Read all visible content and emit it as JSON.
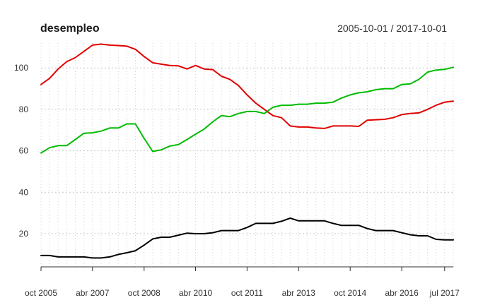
{
  "chart_data": {
    "type": "line",
    "title": "desempleo",
    "date_range": "2005-10-01 / 2017-10-01",
    "xlabel": "",
    "ylabel": "",
    "x_range": [
      "2005-10-01",
      "2017-10-01"
    ],
    "ylim": [
      4,
      112
    ],
    "y_ticks": [
      20,
      40,
      60,
      80,
      100
    ],
    "x_ticks": [
      {
        "date": "2005-10-01",
        "label": "oct 2005"
      },
      {
        "date": "2007-04-01",
        "label": "abr 2007"
      },
      {
        "date": "2008-10-01",
        "label": "oct 2008"
      },
      {
        "date": "2010-04-01",
        "label": "abr 2010"
      },
      {
        "date": "2011-10-01",
        "label": "oct 2011"
      },
      {
        "date": "2013-04-01",
        "label": "abr 2013"
      },
      {
        "date": "2014-10-01",
        "label": "oct 2014"
      },
      {
        "date": "2016-04-01",
        "label": "abr 2016"
      },
      {
        "date": "2017-07-01",
        "label": "jul 2017"
      }
    ],
    "grid": true,
    "legend": "none",
    "series": [
      {
        "color": "#e00000",
        "points": [
          [
            "2005-10-01",
            92
          ],
          [
            "2006-01-01",
            95
          ],
          [
            "2006-04-01",
            99.5
          ],
          [
            "2006-07-01",
            103
          ],
          [
            "2006-10-01",
            105
          ],
          [
            "2007-01-01",
            108
          ],
          [
            "2007-04-01",
            111
          ],
          [
            "2007-07-01",
            111.5
          ],
          [
            "2007-10-01",
            111
          ],
          [
            "2008-01-01",
            110.8
          ],
          [
            "2008-04-01",
            110.5
          ],
          [
            "2008-07-01",
            109
          ],
          [
            "2008-10-01",
            105.5
          ],
          [
            "2009-01-01",
            102.5
          ],
          [
            "2009-04-01",
            101.8
          ],
          [
            "2009-07-01",
            101.2
          ],
          [
            "2009-10-01",
            101
          ],
          [
            "2010-01-01",
            99.5
          ],
          [
            "2010-04-01",
            101.2
          ],
          [
            "2010-07-01",
            99.5
          ],
          [
            "2010-10-01",
            99.2
          ],
          [
            "2011-01-01",
            96
          ],
          [
            "2011-04-01",
            94.5
          ],
          [
            "2011-07-01",
            91.5
          ],
          [
            "2011-10-01",
            87
          ],
          [
            "2012-01-01",
            83
          ],
          [
            "2012-04-01",
            80
          ],
          [
            "2012-07-01",
            77
          ],
          [
            "2012-10-01",
            76
          ],
          [
            "2013-01-01",
            72
          ],
          [
            "2013-04-01",
            71.5
          ],
          [
            "2013-07-01",
            71.5
          ],
          [
            "2013-10-01",
            71
          ],
          [
            "2014-01-01",
            70.8
          ],
          [
            "2014-04-01",
            72
          ],
          [
            "2014-07-01",
            72
          ],
          [
            "2014-10-01",
            72
          ],
          [
            "2015-01-01",
            71.8
          ],
          [
            "2015-04-01",
            74.8
          ],
          [
            "2015-07-01",
            75
          ],
          [
            "2015-10-01",
            75.2
          ],
          [
            "2016-01-01",
            76
          ],
          [
            "2016-04-01",
            77.5
          ],
          [
            "2016-07-01",
            78
          ],
          [
            "2016-10-01",
            78.3
          ],
          [
            "2017-01-01",
            80
          ],
          [
            "2017-04-01",
            82
          ],
          [
            "2017-07-01",
            83.5
          ],
          [
            "2017-10-01",
            84
          ]
        ]
      },
      {
        "color": "#00bb00",
        "points": [
          [
            "2005-10-01",
            59
          ],
          [
            "2006-01-01",
            61.5
          ],
          [
            "2006-04-01",
            62.5
          ],
          [
            "2006-07-01",
            62.5
          ],
          [
            "2006-10-01",
            65.5
          ],
          [
            "2007-01-01",
            68.5
          ],
          [
            "2007-04-01",
            68.7
          ],
          [
            "2007-07-01",
            69.5
          ],
          [
            "2007-10-01",
            71
          ],
          [
            "2008-01-01",
            71
          ],
          [
            "2008-04-01",
            73
          ],
          [
            "2008-07-01",
            73
          ],
          [
            "2008-10-01",
            66
          ],
          [
            "2009-01-01",
            59.7
          ],
          [
            "2009-04-01",
            60.5
          ],
          [
            "2009-07-01",
            62.3
          ],
          [
            "2009-10-01",
            63
          ],
          [
            "2010-01-01",
            65.5
          ],
          [
            "2010-04-01",
            68
          ],
          [
            "2010-07-01",
            70.5
          ],
          [
            "2010-10-01",
            74
          ],
          [
            "2011-01-01",
            77
          ],
          [
            "2011-04-01",
            76.5
          ],
          [
            "2011-07-01",
            78
          ],
          [
            "2011-10-01",
            79
          ],
          [
            "2012-01-01",
            79
          ],
          [
            "2012-04-01",
            78
          ],
          [
            "2012-07-01",
            81
          ],
          [
            "2012-10-01",
            82
          ],
          [
            "2013-01-01",
            82
          ],
          [
            "2013-04-01",
            82.5
          ],
          [
            "2013-07-01",
            82.5
          ],
          [
            "2013-10-01",
            83
          ],
          [
            "2014-01-01",
            83
          ],
          [
            "2014-04-01",
            83.5
          ],
          [
            "2014-07-01",
            85.5
          ],
          [
            "2014-10-01",
            87
          ],
          [
            "2015-01-01",
            88
          ],
          [
            "2015-04-01",
            88.5
          ],
          [
            "2015-07-01",
            89.5
          ],
          [
            "2015-10-01",
            90
          ],
          [
            "2016-01-01",
            90
          ],
          [
            "2016-04-01",
            92
          ],
          [
            "2016-07-01",
            92.3
          ],
          [
            "2016-10-01",
            94.5
          ],
          [
            "2017-01-01",
            98
          ],
          [
            "2017-04-01",
            99
          ],
          [
            "2017-07-01",
            99.3
          ],
          [
            "2017-10-01",
            100.3
          ]
        ]
      },
      {
        "color": "#000000",
        "points": [
          [
            "2005-10-01",
            9.5
          ],
          [
            "2006-01-01",
            9.5
          ],
          [
            "2006-04-01",
            8.8
          ],
          [
            "2006-07-01",
            8.8
          ],
          [
            "2006-10-01",
            8.8
          ],
          [
            "2007-01-01",
            8.8
          ],
          [
            "2007-04-01",
            8.3
          ],
          [
            "2007-07-01",
            8.3
          ],
          [
            "2007-10-01",
            8.8
          ],
          [
            "2008-01-01",
            10
          ],
          [
            "2008-04-01",
            10.8
          ],
          [
            "2008-07-01",
            11.8
          ],
          [
            "2008-10-01",
            14.5
          ],
          [
            "2009-01-01",
            17.5
          ],
          [
            "2009-04-01",
            18.3
          ],
          [
            "2009-07-01",
            18.3
          ],
          [
            "2009-10-01",
            19.3
          ],
          [
            "2010-01-01",
            20.3
          ],
          [
            "2010-04-01",
            20
          ],
          [
            "2010-07-01",
            20
          ],
          [
            "2010-10-01",
            20.5
          ],
          [
            "2011-01-01",
            21.5
          ],
          [
            "2011-04-01",
            21.5
          ],
          [
            "2011-07-01",
            21.5
          ],
          [
            "2011-10-01",
            23
          ],
          [
            "2012-01-01",
            25
          ],
          [
            "2012-04-01",
            25
          ],
          [
            "2012-07-01",
            25
          ],
          [
            "2012-10-01",
            26
          ],
          [
            "2013-01-01",
            27.5
          ],
          [
            "2013-04-01",
            26.2
          ],
          [
            "2013-07-01",
            26.2
          ],
          [
            "2013-10-01",
            26.2
          ],
          [
            "2014-01-01",
            26.2
          ],
          [
            "2014-04-01",
            25
          ],
          [
            "2014-07-01",
            24
          ],
          [
            "2014-10-01",
            24
          ],
          [
            "2015-01-01",
            24
          ],
          [
            "2015-04-01",
            22.5
          ],
          [
            "2015-07-01",
            21.5
          ],
          [
            "2015-10-01",
            21.5
          ],
          [
            "2016-01-01",
            21.5
          ],
          [
            "2016-04-01",
            20.5
          ],
          [
            "2016-07-01",
            19.5
          ],
          [
            "2016-10-01",
            19
          ],
          [
            "2017-01-01",
            19
          ],
          [
            "2017-04-01",
            17.3
          ],
          [
            "2017-07-01",
            17
          ],
          [
            "2017-10-01",
            17
          ]
        ]
      }
    ]
  }
}
